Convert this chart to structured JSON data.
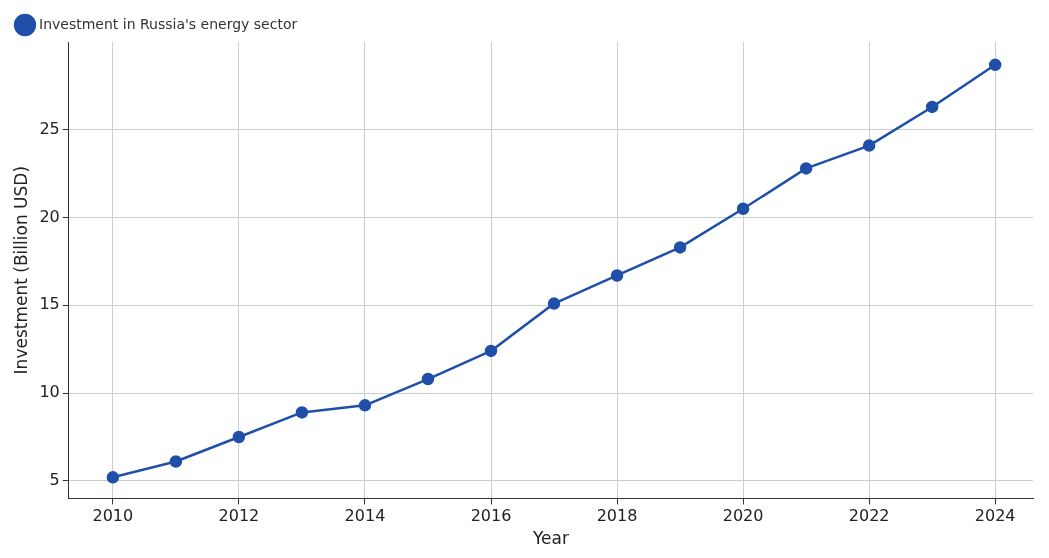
{
  "chart_data": {
    "type": "line",
    "xlabel": "Year",
    "ylabel": "Investment (Billion USD)",
    "x": [
      2010,
      2011,
      2012,
      2013,
      2014,
      2015,
      2016,
      2017,
      2018,
      2019,
      2020,
      2021,
      2022,
      2023,
      2024
    ],
    "series": [
      {
        "name": "Investment in Russia's energy sector",
        "color": "#1f4fa8",
        "values": [
          5.2,
          6.1,
          7.5,
          8.9,
          9.3,
          10.8,
          12.4,
          15.1,
          16.7,
          18.3,
          20.5,
          22.8,
          24.1,
          26.3,
          28.7
        ]
      }
    ],
    "xlim": [
      2009.3,
      2024.6
    ],
    "xticks": [
      2010,
      2012,
      2014,
      2016,
      2018,
      2020,
      2022,
      2024
    ],
    "ylim": [
      4,
      30
    ],
    "yticks": [
      5,
      10,
      15,
      20,
      25
    ],
    "grid": true,
    "legend": "top left",
    "marker": "circle",
    "line_style": "solid"
  }
}
